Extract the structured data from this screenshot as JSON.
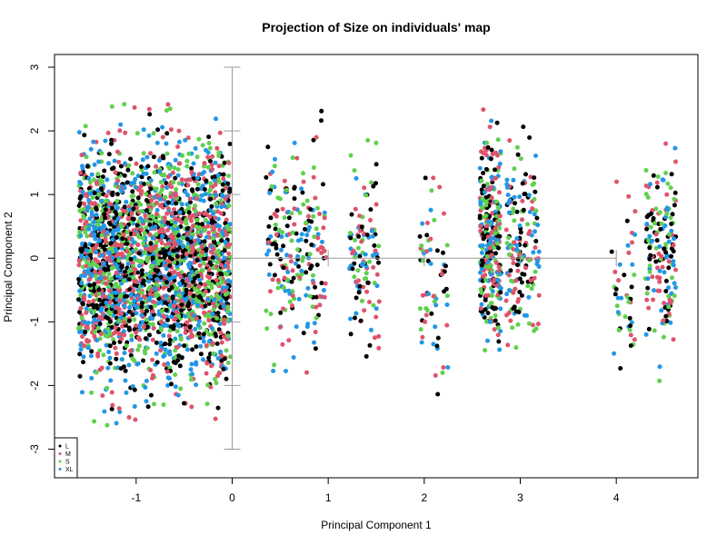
{
  "chart_data": {
    "type": "scatter",
    "title": "Projection of Size on individuals' map",
    "xlabel": "Principal Component 1",
    "ylabel": "Principal Component 2",
    "xlim": [
      -1.85,
      4.85
    ],
    "ylim": [
      -3.45,
      3.2
    ],
    "x_ticks": [
      -1,
      0,
      1,
      2,
      3,
      4
    ],
    "y_ticks": [
      -3,
      -2,
      -1,
      0,
      1,
      2,
      3
    ],
    "x_tick_labels": [
      "-1",
      "0",
      "1",
      "2",
      "3",
      "4"
    ],
    "y_tick_labels": [
      "-3",
      "-2",
      "-1",
      "0",
      "1",
      "2",
      "3"
    ],
    "grid": false,
    "legend_position": "bottom-left",
    "series": [
      {
        "name": "L",
        "color": "#000000"
      },
      {
        "name": "M",
        "color": "#DF536B"
      },
      {
        "name": "S",
        "color": "#61D04F"
      },
      {
        "name": "XL",
        "color": "#2297E6"
      }
    ],
    "clusters": [
      {
        "x_range": [
          -1.6,
          -0.02
        ],
        "y_range": [
          -2.8,
          2.7
        ],
        "counts": {
          "L": 700,
          "M": 700,
          "S": 650,
          "XL": 700
        }
      },
      {
        "x_range": [
          0.35,
          0.98
        ],
        "y_range": [
          -2.5,
          2.7
        ],
        "counts": {
          "L": 60,
          "M": 55,
          "S": 50,
          "XL": 55
        }
      },
      {
        "x_range": [
          1.22,
          1.55
        ],
        "y_range": [
          -2.3,
          2.55
        ],
        "counts": {
          "L": 30,
          "M": 30,
          "S": 25,
          "XL": 30
        }
      },
      {
        "x_range": [
          1.95,
          2.25
        ],
        "y_range": [
          -2.5,
          1.9
        ],
        "counts": {
          "L": 18,
          "M": 18,
          "S": 15,
          "XL": 15
        }
      },
      {
        "x_range": [
          2.58,
          2.8
        ],
        "y_range": [
          -2.1,
          2.65
        ],
        "counts": {
          "L": 85,
          "M": 80,
          "S": 70,
          "XL": 80
        }
      },
      {
        "x_range": [
          2.85,
          3.2
        ],
        "y_range": [
          -2.0,
          2.4
        ],
        "counts": {
          "L": 45,
          "M": 45,
          "S": 40,
          "XL": 40
        }
      },
      {
        "x_range": [
          3.95,
          4.2
        ],
        "y_range": [
          -2.4,
          1.6
        ],
        "counts": {
          "L": 12,
          "M": 12,
          "S": 10,
          "XL": 10
        }
      },
      {
        "x_range": [
          4.3,
          4.62
        ],
        "y_range": [
          -2.1,
          2.35
        ],
        "counts": {
          "L": 45,
          "M": 40,
          "S": 40,
          "XL": 40
        }
      }
    ],
    "reference_lines": {
      "horizontal": {
        "y": 0,
        "x_range": [
          0,
          4
        ],
        "tick_x": [
          1,
          2,
          3
        ]
      },
      "vertical": {
        "x": 0,
        "y_range": [
          -3,
          3
        ],
        "tick_y": [
          -2,
          -1,
          1,
          2
        ]
      }
    }
  }
}
